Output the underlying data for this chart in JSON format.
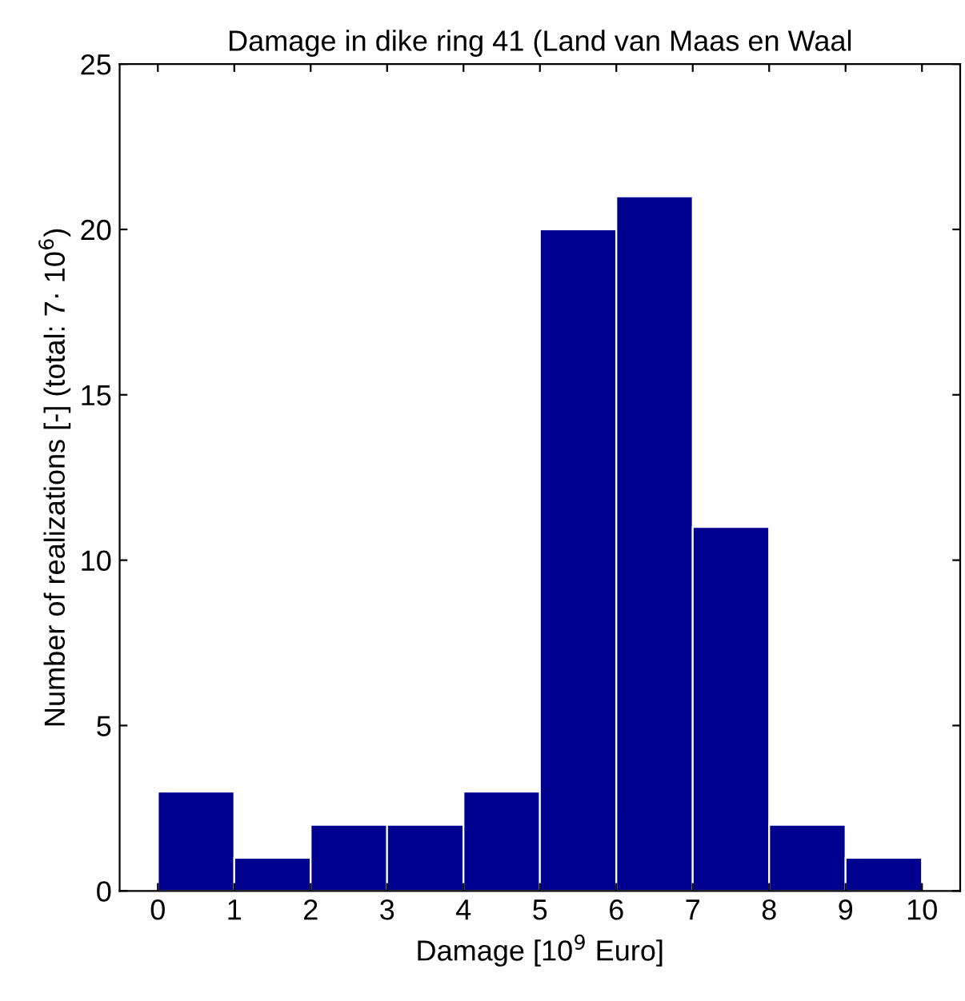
{
  "chart_data": {
    "type": "histogram",
    "title": "Damage in dike ring 41 (Land van Maas en Waal",
    "xlabel": "Damage [10$^{9}$ Euro]",
    "ylabel": "Number of realizations [-] (total: 7· 10$^{6}$)",
    "bins": [
      0,
      1,
      2,
      3,
      4,
      5,
      6,
      7,
      8,
      9,
      10
    ],
    "values": [
      3,
      1,
      2,
      2,
      3,
      20,
      21,
      11,
      2,
      1
    ],
    "color": "#00008f",
    "xlim": [
      -0.5,
      10.5
    ],
    "ylim": [
      0,
      25
    ],
    "xticks": [
      0,
      1,
      2,
      3,
      4,
      5,
      6,
      7,
      8,
      9,
      10
    ],
    "yticks": [
      0,
      5,
      10,
      15,
      20,
      25
    ],
    "grid": false
  }
}
